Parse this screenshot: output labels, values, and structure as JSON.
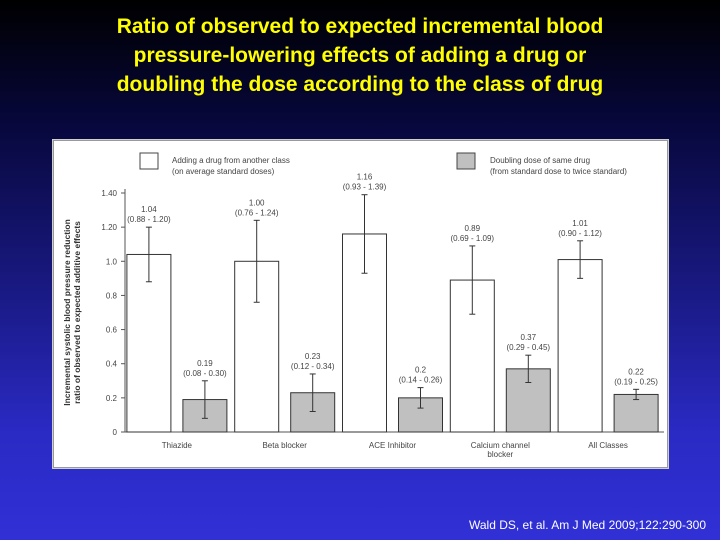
{
  "slide": {
    "title_lines": [
      "Ratio of observed to expected incremental blood",
      "pressure-lowering effects of adding a drug or",
      "doubling the dose according to the class of drug"
    ],
    "citation": "Wald DS, et al. Am J Med 2009;122:290-300",
    "title_color": "#ffff00"
  },
  "chart_data": {
    "type": "bar",
    "categories": [
      "Thiazide",
      "Beta blocker",
      "ACE Inhibitor",
      "Calcium channel blocker",
      "All Classes"
    ],
    "category_label_lines": [
      [
        "Thiazide"
      ],
      [
        "Beta blocker"
      ],
      [
        "ACE Inhibitor"
      ],
      [
        "Calcium channel",
        "blocker"
      ],
      [
        "All Classes"
      ]
    ],
    "ylabel_lines": [
      "Incremental systolic blood pressure reduction",
      "ratio of observed to expected additive effects"
    ],
    "ylim": [
      0,
      1.4
    ],
    "yticks": [
      0,
      0.2,
      0.4,
      0.6,
      0.8,
      1.0,
      1.2,
      1.4
    ],
    "ytick_labels": [
      "0",
      "0.2",
      "0.4",
      "0.6",
      "0.8",
      "1.0",
      "1.20",
      "1.40"
    ],
    "legend_position": "top",
    "series": [
      {
        "legend_lines": [
          "Adding a drug from another class",
          "(on average standard doses)"
        ],
        "fill": "#ffffff",
        "values": [
          1.04,
          1.0,
          1.16,
          0.89,
          1.01
        ],
        "ci_low": [
          0.88,
          0.76,
          0.93,
          0.69,
          0.9
        ],
        "ci_high": [
          1.2,
          1.24,
          1.39,
          1.09,
          1.12
        ],
        "value_labels": [
          "1.04",
          "1.00",
          "1.16",
          "0.89",
          "1.01"
        ],
        "ci_labels": [
          "(0.88 - 1.20)",
          "(0.76 - 1.24)",
          "(0.93 - 1.39)",
          "(0.69 - 1.09)",
          "(0.90 - 1.12)"
        ]
      },
      {
        "legend_lines": [
          "Doubling dose of same drug",
          "(from standard dose to twice standard)"
        ],
        "fill": "#c0c0c0",
        "values": [
          0.19,
          0.23,
          0.2,
          0.37,
          0.22
        ],
        "ci_low": [
          0.08,
          0.12,
          0.14,
          0.29,
          0.19
        ],
        "ci_high": [
          0.3,
          0.34,
          0.26,
          0.45,
          0.25
        ],
        "value_labels": [
          "0.19",
          "0.23",
          "0.2",
          "0.37",
          "0.22"
        ],
        "ci_labels": [
          "(0.08 - 0.30)",
          "(0.12 - 0.34)",
          "(0.14 - 0.26)",
          "(0.29 - 0.45)",
          "(0.19 - 0.25)"
        ]
      }
    ]
  }
}
